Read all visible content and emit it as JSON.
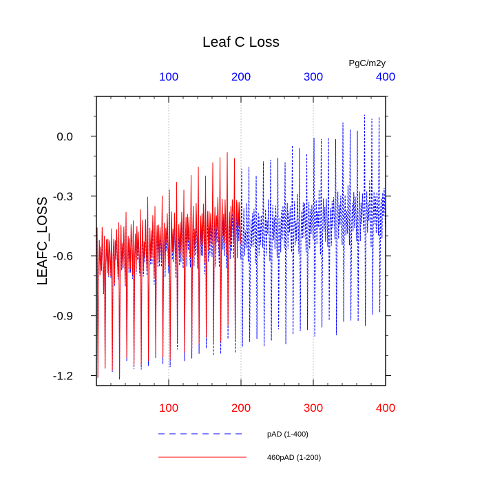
{
  "chart_data": {
    "type": "line",
    "title": "Leaf C Loss",
    "units": "PgC/m2y",
    "ylabel": "LEAFC_LOSS",
    "xlabel": "",
    "xlim": [
      0,
      400
    ],
    "ylim": [
      -1.25,
      0.2
    ],
    "x_ticks": [
      100,
      200,
      300,
      400
    ],
    "x_tick_labels": [
      "100",
      "200",
      "300",
      "400"
    ],
    "y_ticks": [
      0.0,
      -0.3,
      -0.6,
      -0.9,
      -1.2
    ],
    "y_tick_labels": [
      "0.0",
      "-0.3",
      "-0.6",
      "-0.9",
      "-1.2"
    ],
    "top_axis_color": "#0000ff",
    "bottom_axis_color": "#ff0000",
    "vertical_grid": true,
    "legend_position": "bottom",
    "series": [
      {
        "name": "pAD (1-400)",
        "color": "#0000ff",
        "style": "dashed",
        "x_range": [
          1,
          400
        ],
        "cycle_length": 10,
        "description_values": {
          "cycle_peak_start": -0.5,
          "cycle_peak_end": 0.12,
          "cycle_trough_start": -1.2,
          "cycle_trough_end": -0.9,
          "mid_cycle_start": -0.6,
          "mid_cycle_end": -0.35
        }
      },
      {
        "name": "460pAD (1-200)",
        "color": "#ff0000",
        "style": "solid",
        "x_range": [
          1,
          200
        ],
        "cycle_length": 10,
        "description_values": {
          "cycle_peak_start": -0.5,
          "cycle_peak_end": -0.05,
          "cycle_trough_start": -1.2,
          "cycle_trough_end": -0.98,
          "mid_cycle_start": -0.6,
          "mid_cycle_end": -0.4
        }
      }
    ]
  }
}
